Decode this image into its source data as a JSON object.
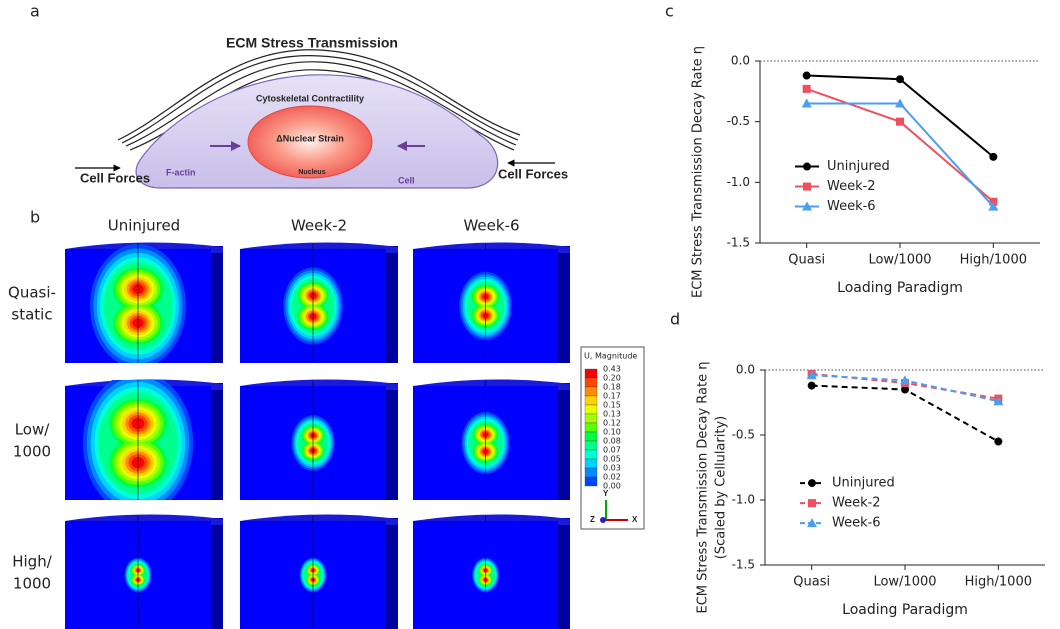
{
  "panel_a": {
    "label": "a",
    "title": "ECM Stress Transmission",
    "contractility": "Cytoskeletal Contractility",
    "nuclear_strain": "ΔNuclear Strain",
    "nucleus": "Nucleus",
    "factin": "F-actin",
    "cell": "Cell",
    "forces_left": "Cell Forces",
    "forces_right": "Cell Forces"
  },
  "panel_b": {
    "label": "b",
    "columns": [
      "Uninjured",
      "Week-2",
      "Week-6"
    ],
    "rows": [
      [
        "Quasi-",
        "static"
      ],
      [
        "Low/",
        "1000"
      ],
      [
        "High/",
        "1000"
      ]
    ],
    "legend": {
      "title": "U, Magnitude",
      "labels": [
        "0.43",
        "0.20",
        "0.18",
        "0.17",
        "0.15",
        "0.13",
        "0.12",
        "0.10",
        "0.08",
        "0.07",
        "0.05",
        "0.03",
        "0.02",
        "0.00"
      ]
    },
    "axes": [
      "Y",
      "Z",
      "X"
    ]
  },
  "chart_data": [
    {
      "type": "line",
      "panel_label": "c",
      "ylabel": [
        "ECM Stress  Transmission  Decay  Rate  η"
      ],
      "xlabel": "Loading  Paradigm",
      "categories": [
        "Quasi",
        "Low/1000",
        "High/1000"
      ],
      "series": [
        {
          "name": "Uninjured",
          "color": "#000000",
          "marker": "circle",
          "linestyle": "solid",
          "values": [
            -0.12,
            -0.15,
            -0.79
          ]
        },
        {
          "name": "Week-2",
          "color": "#f0505e",
          "marker": "square",
          "linestyle": "solid",
          "values": [
            -0.23,
            -0.5,
            -1.16
          ]
        },
        {
          "name": "Week-6",
          "color": "#4a9ff0",
          "marker": "triangle",
          "linestyle": "solid",
          "values": [
            -0.35,
            -0.35,
            -1.2
          ]
        }
      ],
      "ylim": [
        -1.5,
        0
      ],
      "yticks": [
        {
          "value": 0,
          "label": "0.0"
        },
        -0.5,
        {
          "value": -1,
          "label": "-1.0"
        },
        -1.5
      ],
      "zero_line": true,
      "legend": "center-left"
    },
    {
      "type": "line",
      "panel_label": "d",
      "ylabel": [
        "ECM Stress  Transmission  Decay  Rate  η",
        "(Scaled by Cellularity)"
      ],
      "xlabel": "Loading  Paradigm",
      "categories": [
        "Quasi",
        "Low/1000",
        "High/1000"
      ],
      "series": [
        {
          "name": "Uninjured",
          "color": "#000000",
          "marker": "circle",
          "linestyle": "dashed",
          "values": [
            -0.12,
            -0.15,
            -0.55
          ]
        },
        {
          "name": "Week-2",
          "color": "#f0505e",
          "marker": "square",
          "linestyle": "dashed",
          "values": [
            -0.03,
            -0.1,
            -0.22
          ]
        },
        {
          "name": "Week-6",
          "color": "#4a9ff0",
          "marker": "triangle",
          "linestyle": "dashed",
          "values": [
            -0.04,
            -0.08,
            -0.24
          ]
        }
      ],
      "ylim": [
        -1.5,
        0
      ],
      "yticks": [
        {
          "value": 0,
          "label": "0.0"
        },
        -0.5,
        {
          "value": -1,
          "label": "-1.0"
        },
        -1.5
      ],
      "zero_line": true,
      "legend": "center-left"
    }
  ]
}
